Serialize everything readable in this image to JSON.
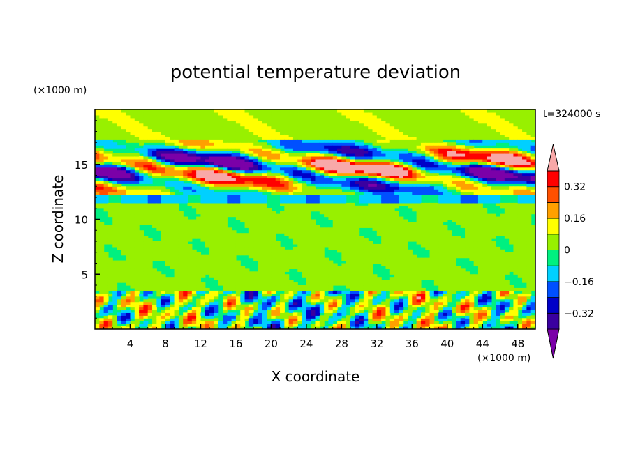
{
  "chart_data": {
    "type": "heatmap",
    "title": "potential temperature deviation",
    "xlabel": "X coordinate",
    "ylabel": "Z coordinate",
    "x_unit": "(×1000 m)",
    "y_unit": "(×1000 m)",
    "time_label": "t=324000 s",
    "xlim": [
      0,
      50
    ],
    "ylim": [
      0,
      20
    ],
    "x_ticks": [
      4,
      8,
      12,
      16,
      20,
      24,
      28,
      32,
      36,
      40,
      44,
      48
    ],
    "y_ticks": [
      5,
      10,
      15
    ],
    "colorbar": {
      "levels": [
        -0.4,
        -0.32,
        -0.24,
        -0.16,
        -0.08,
        0,
        0.08,
        0.16,
        0.24,
        0.32,
        0.4
      ],
      "labels": [
        "0.32",
        "0.16",
        "0",
        "−0.16",
        "−0.32"
      ],
      "label_values": [
        0.32,
        0.16,
        0,
        -0.16,
        -0.32
      ],
      "colors": [
        "#7b00a8",
        "#3a00a0",
        "#0000c8",
        "#0050ff",
        "#00d0ff",
        "#00f080",
        "#98f000",
        "#ffff00",
        "#ffa000",
        "#ff5000",
        "#ff0000",
        "#f8a8a8"
      ]
    },
    "bands": [
      {
        "z": [
          0,
          3.5
        ],
        "description_level": "mixed",
        "mean": 0.0
      },
      {
        "z": [
          3.5,
          11.5
        ],
        "mean": 0.04
      },
      {
        "z": [
          11.5,
          12.2
        ],
        "mean": -0.12
      },
      {
        "z": [
          12.2,
          17
        ],
        "mean": 0.0
      },
      {
        "z": [
          17,
          20
        ],
        "mean": 0.05
      }
    ]
  }
}
